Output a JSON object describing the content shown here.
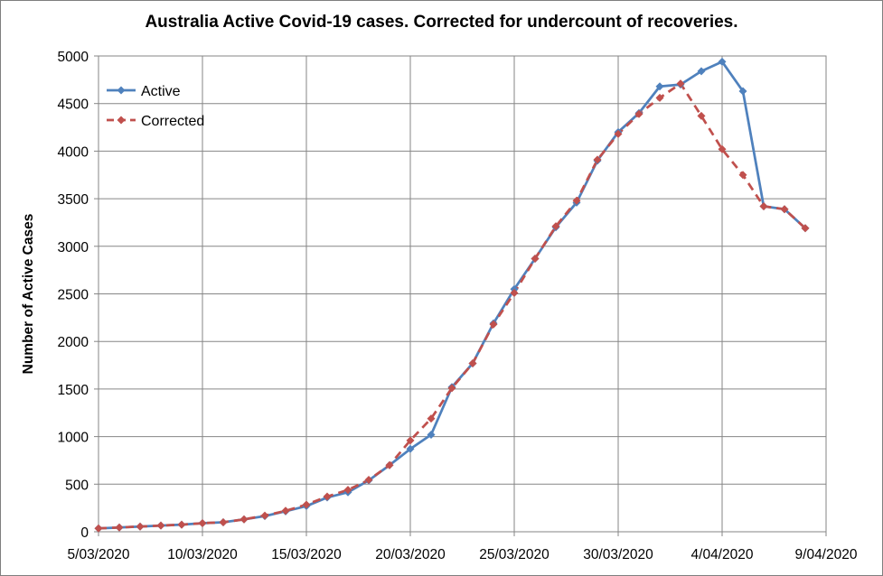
{
  "chart_data": {
    "type": "line",
    "title": "Australia Active Covid-19 cases. Corrected for undercount of recoveries.",
    "xlabel": "",
    "ylabel": "Number of Active Cases",
    "ylim": [
      0,
      5000
    ],
    "yticks": [
      0,
      500,
      1000,
      1500,
      2000,
      2500,
      3000,
      3500,
      4000,
      4500,
      5000
    ],
    "xlim": [
      "5/03/2020",
      "9/04/2020"
    ],
    "xticks": [
      "5/03/2020",
      "10/03/2020",
      "15/03/2020",
      "20/03/2020",
      "25/03/2020",
      "30/03/2020",
      "4/04/2020",
      "9/04/2020"
    ],
    "grid": true,
    "legend_position": "top-left",
    "x": [
      "5/03/2020",
      "6/03/2020",
      "7/03/2020",
      "8/03/2020",
      "9/03/2020",
      "10/03/2020",
      "11/03/2020",
      "12/03/2020",
      "13/03/2020",
      "14/03/2020",
      "15/03/2020",
      "16/03/2020",
      "17/03/2020",
      "18/03/2020",
      "19/03/2020",
      "20/03/2020",
      "21/03/2020",
      "22/03/2020",
      "23/03/2020",
      "24/03/2020",
      "25/03/2020",
      "26/03/2020",
      "27/03/2020",
      "28/03/2020",
      "29/03/2020",
      "30/03/2020",
      "31/03/2020",
      "1/04/2020",
      "2/04/2020",
      "3/04/2020",
      "4/04/2020",
      "5/04/2020",
      "6/04/2020",
      "7/04/2020",
      "8/04/2020"
    ],
    "series": [
      {
        "name": "Active",
        "color": "#4f81bd",
        "style": "solid",
        "marker": "diamond",
        "values": [
          35,
          45,
          55,
          65,
          75,
          90,
          100,
          130,
          165,
          215,
          270,
          360,
          415,
          540,
          700,
          870,
          1020,
          1520,
          1770,
          2190,
          2550,
          2870,
          3200,
          3460,
          3900,
          4200,
          4400,
          4680,
          4700,
          4840,
          4940,
          4630,
          3420,
          3390,
          3190
        ]
      },
      {
        "name": "Corrected",
        "color": "#c0504d",
        "style": "dashed",
        "marker": "diamond",
        "values": [
          35,
          45,
          55,
          65,
          75,
          90,
          100,
          130,
          170,
          220,
          285,
          370,
          440,
          545,
          700,
          960,
          1190,
          1510,
          1770,
          2180,
          2510,
          2870,
          3210,
          3480,
          3910,
          4180,
          4390,
          4560,
          4710,
          4370,
          4020,
          3750,
          3420,
          3390,
          3190
        ]
      }
    ]
  }
}
